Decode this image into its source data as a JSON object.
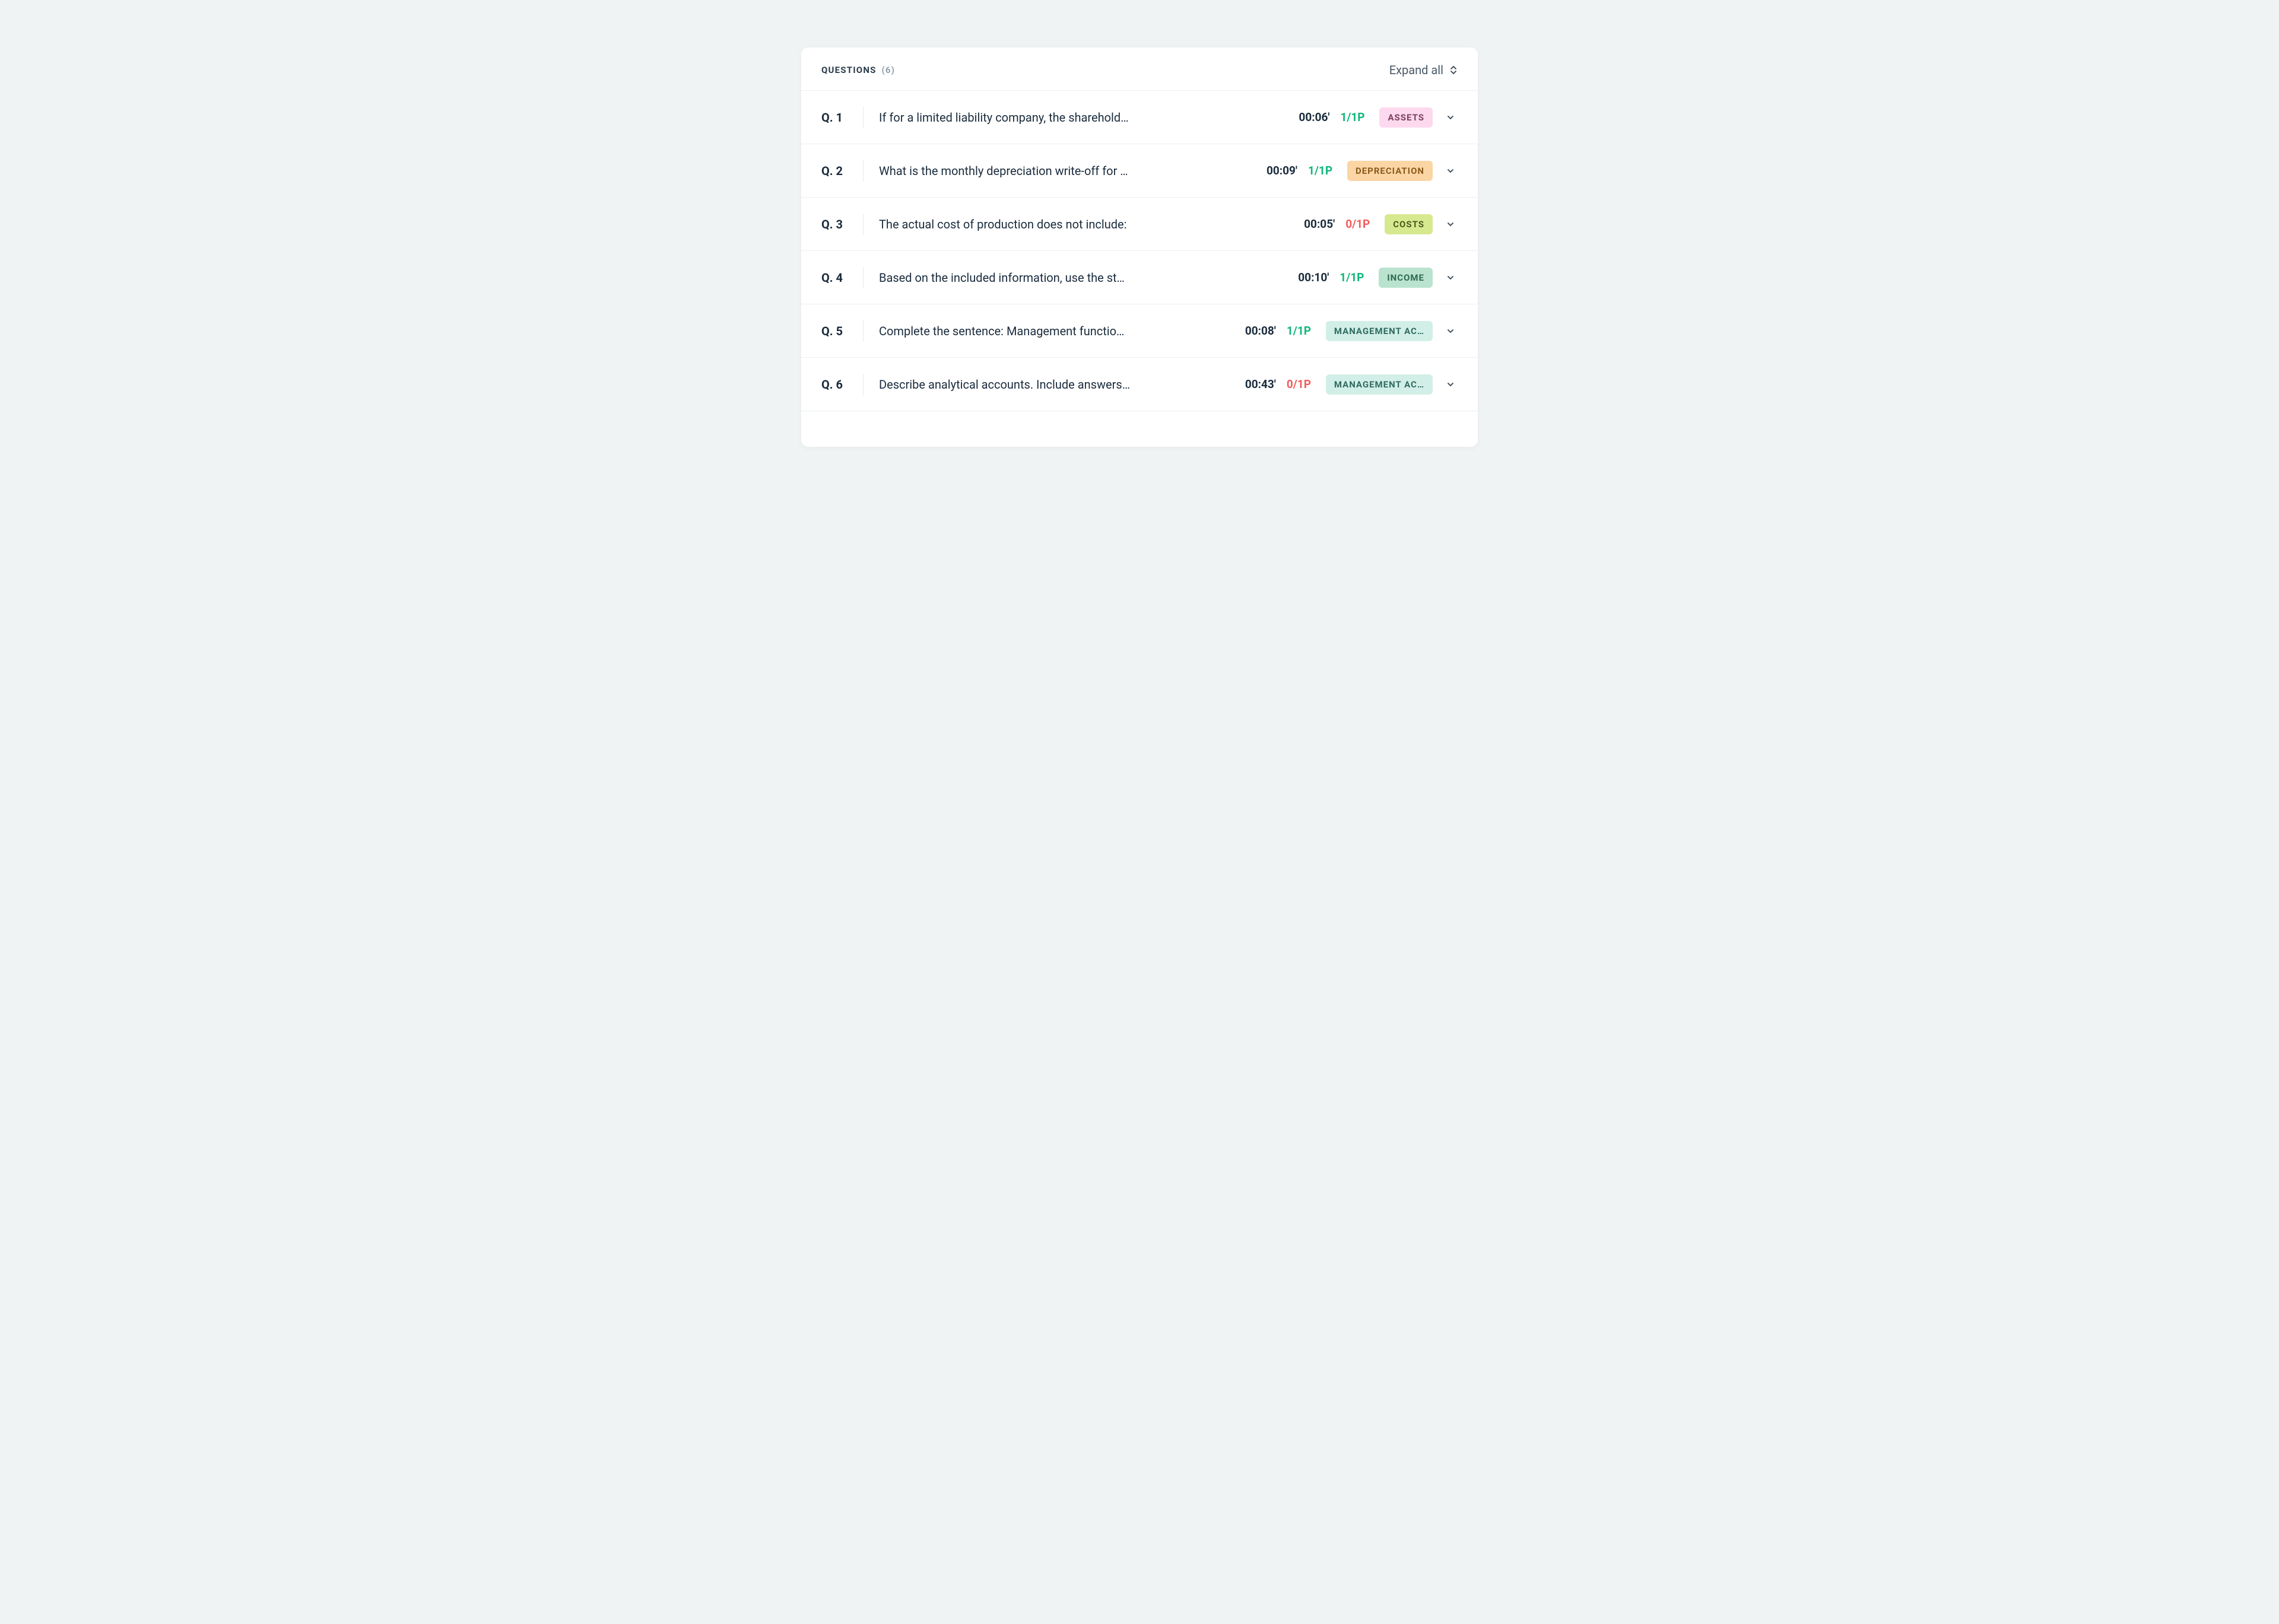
{
  "header": {
    "title_label": "QUESTIONS",
    "count_label": "(6)",
    "expand_all_label": "Expand all"
  },
  "colors": {
    "score_good": "#0fb77a",
    "score_bad": "#f25c5c",
    "chevron": "#4a5866"
  },
  "tag_styles": {
    "assets": {
      "bg": "#fcd9ef",
      "fg": "#7a3f5d"
    },
    "depreciation": {
      "bg": "#fcd5a4",
      "fg": "#8a5a1d"
    },
    "costs": {
      "bg": "#d7e98e",
      "fg": "#4a5a1d"
    },
    "income": {
      "bg": "#b9e3cf",
      "fg": "#2f6a4f"
    },
    "management": {
      "bg": "#d2efe7",
      "fg": "#2f6a5f"
    }
  },
  "questions": [
    {
      "num": "Q. 1",
      "text": "If for a limited liability company, the sharehold…",
      "time": "00:06'",
      "score": "1/1P",
      "score_good": true,
      "tag": "ASSETS",
      "tag_style": "assets"
    },
    {
      "num": "Q. 2",
      "text": "What is the monthly depreciation write-off for …",
      "time": "00:09'",
      "score": "1/1P",
      "score_good": true,
      "tag": "DEPRECIATION",
      "tag_style": "depreciation"
    },
    {
      "num": "Q. 3",
      "text": "The actual cost of production does not include:",
      "time": "00:05'",
      "score": "0/1P",
      "score_good": false,
      "tag": "COSTS",
      "tag_style": "costs"
    },
    {
      "num": "Q. 4",
      "text": "Based on the included information, use the st…",
      "time": "00:10'",
      "score": "1/1P",
      "score_good": true,
      "tag": "INCOME",
      "tag_style": "income"
    },
    {
      "num": "Q. 5",
      "text": "Complete the sentence: Management functio…",
      "time": "00:08'",
      "score": "1/1P",
      "score_good": true,
      "tag": "MANAGEMENT AC…",
      "tag_style": "management"
    },
    {
      "num": "Q. 6",
      "text": "Describe analytical accounts. Include answers…",
      "time": "00:43'",
      "score": "0/1P",
      "score_good": false,
      "tag": "MANAGEMENT AC…",
      "tag_style": "management"
    }
  ]
}
